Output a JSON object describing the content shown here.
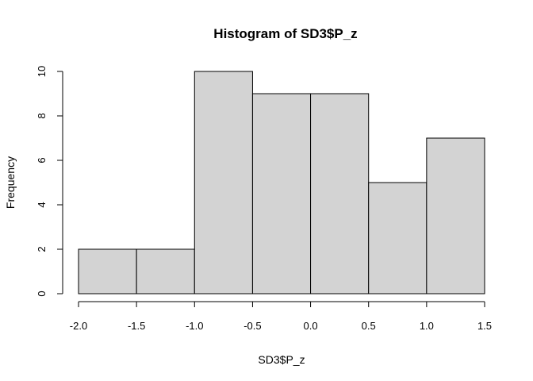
{
  "chart_data": {
    "type": "bar",
    "title": "Histogram of SD3$P_z",
    "xlabel": "SD3$P_z",
    "ylabel": "Frequency",
    "bins": [
      {
        "start": -2.0,
        "end": -1.5,
        "count": 2
      },
      {
        "start": -1.5,
        "end": -1.0,
        "count": 2
      },
      {
        "start": -1.0,
        "end": -0.5,
        "count": 10
      },
      {
        "start": -0.5,
        "end": 0.0,
        "count": 9
      },
      {
        "start": 0.0,
        "end": 0.5,
        "count": 9
      },
      {
        "start": 0.5,
        "end": 1.0,
        "count": 5
      },
      {
        "start": 1.0,
        "end": 1.5,
        "count": 7
      }
    ],
    "xlim": [
      -2.0,
      1.5
    ],
    "ylim": [
      0,
      10
    ],
    "x_ticks": [
      "-2.0",
      "-1.5",
      "-1.0",
      "-0.5",
      "0.0",
      "0.5",
      "1.0",
      "1.5"
    ],
    "y_ticks": [
      "0",
      "2",
      "4",
      "6",
      "8",
      "10"
    ],
    "bar_fill": "#d3d3d3",
    "bar_stroke": "#000000",
    "grid": false,
    "legend": "none"
  }
}
